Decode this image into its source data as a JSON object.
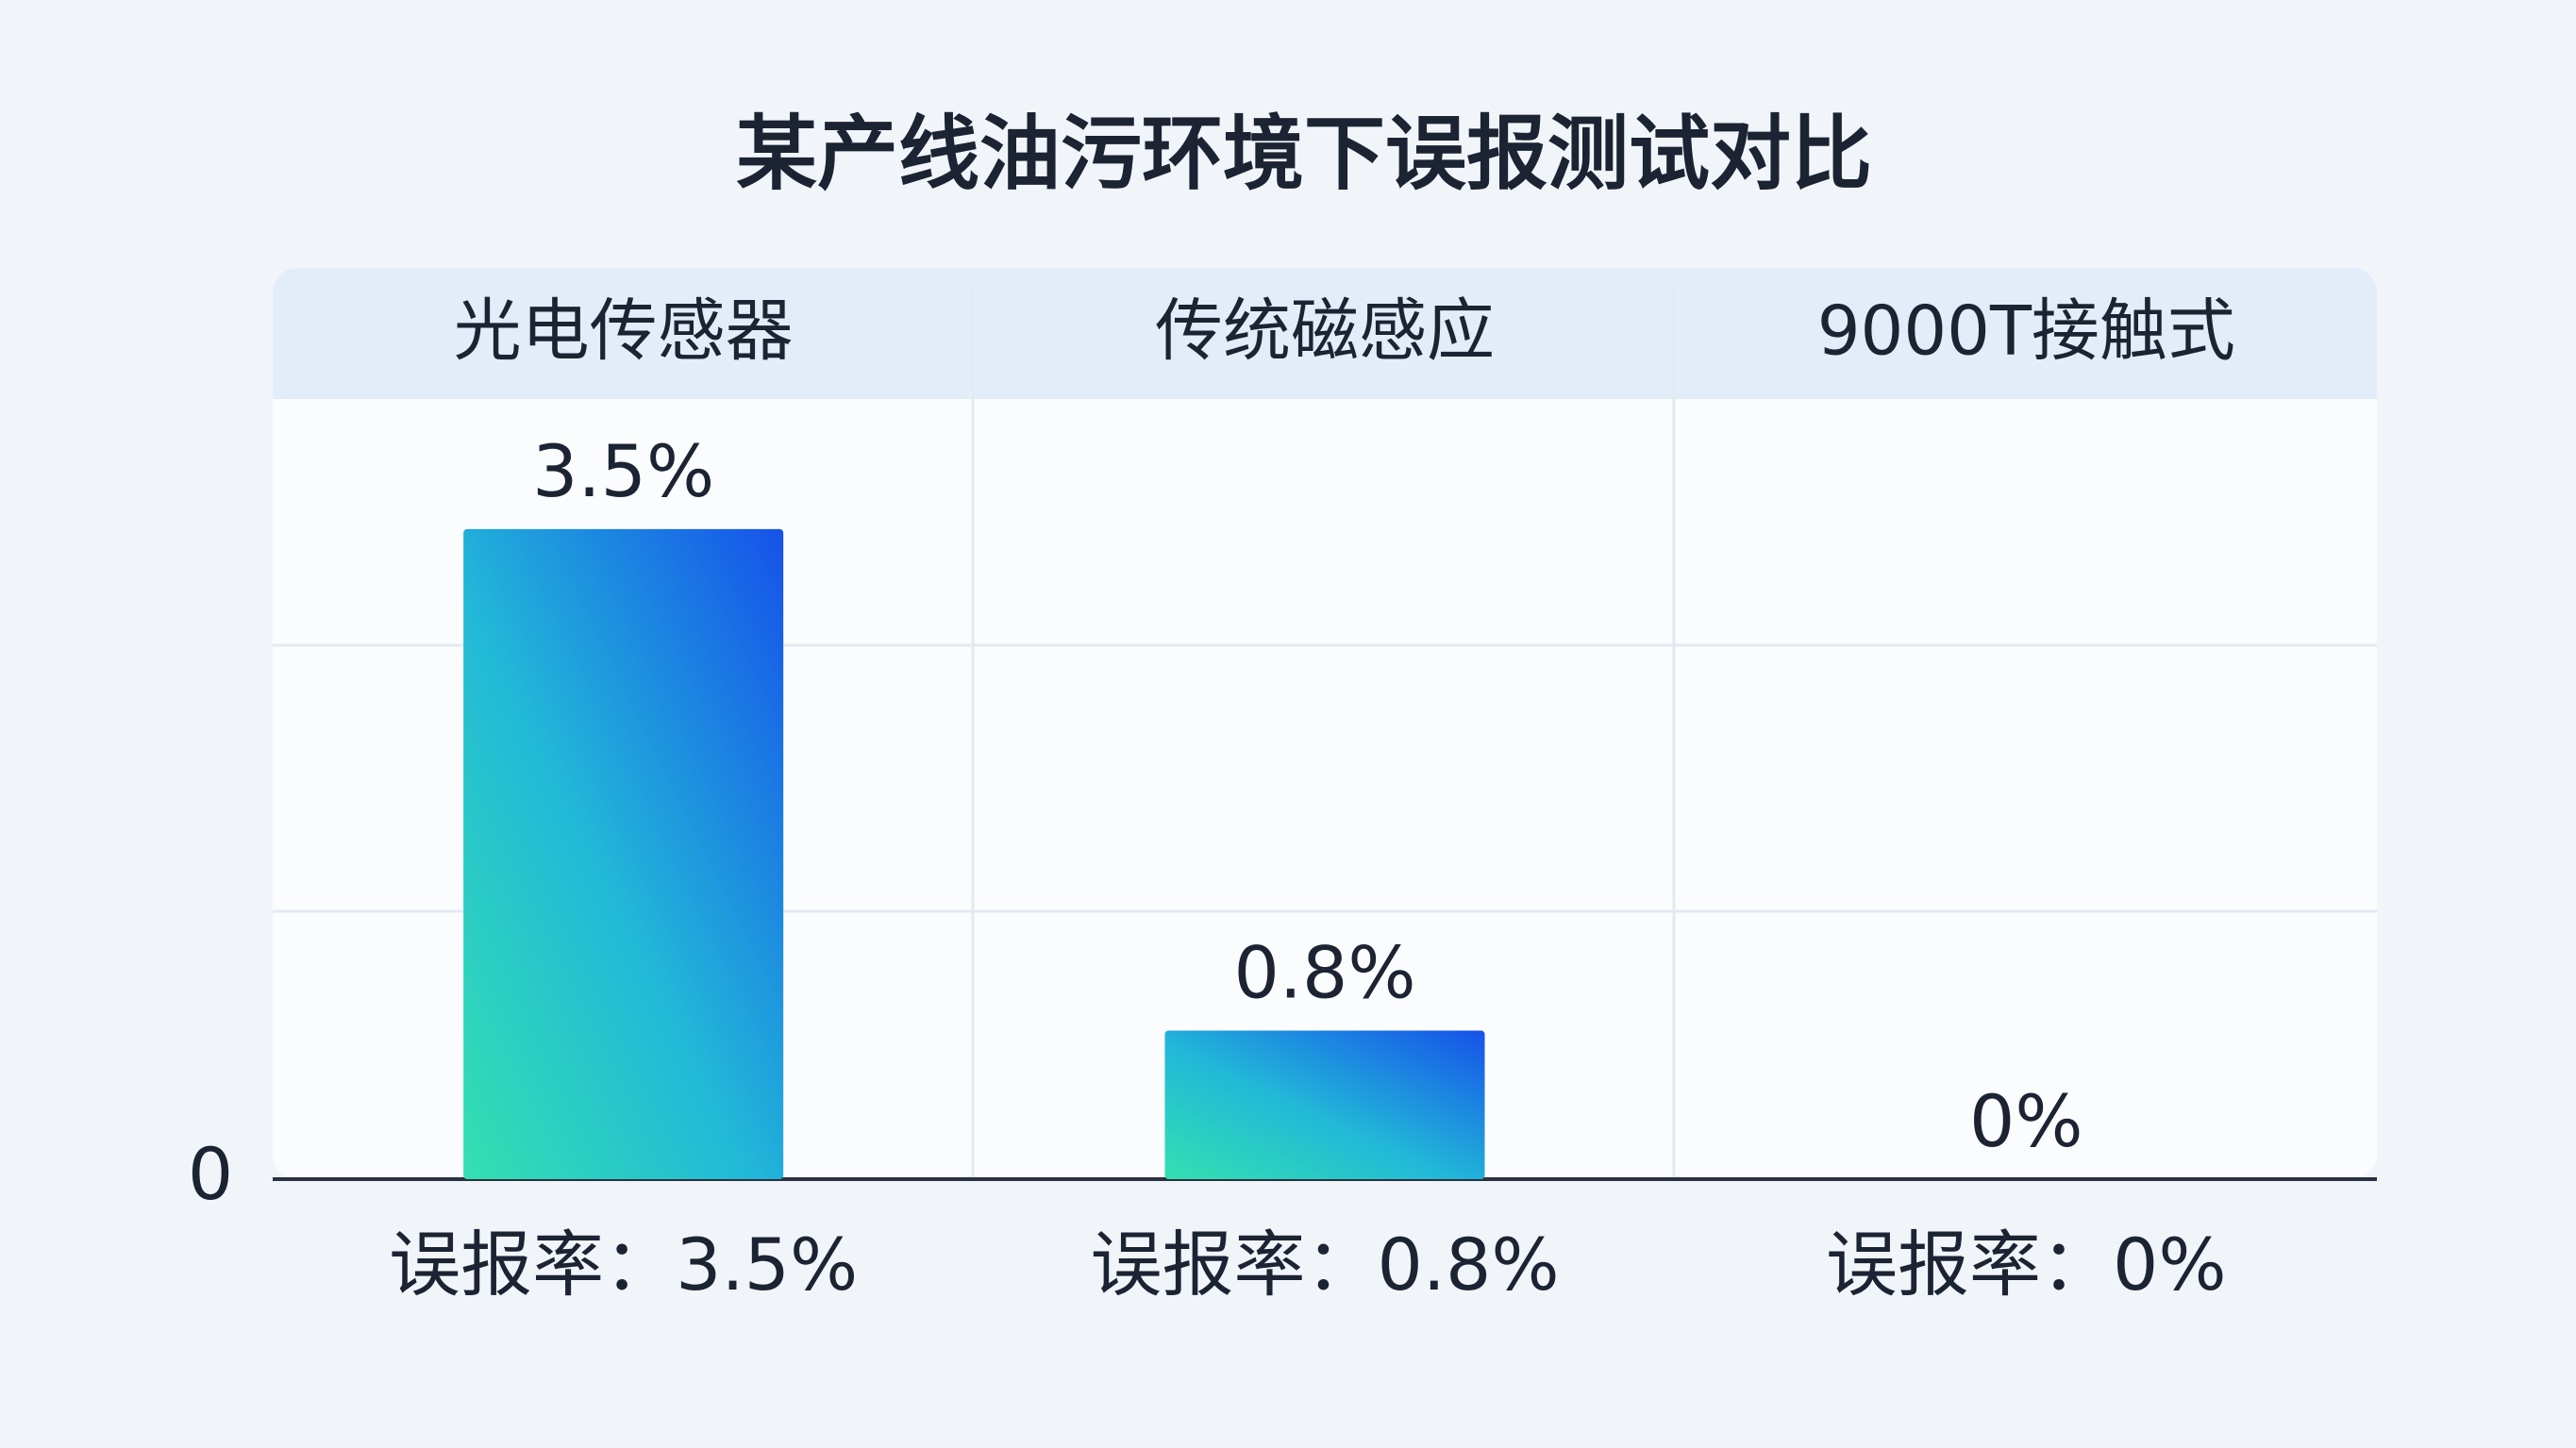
{
  "chart_data": {
    "type": "bar",
    "title": "某产线油污环境下误报测试对比",
    "categories": [
      "光电传感器",
      "传统磁感应",
      "9000T接触式"
    ],
    "values": [
      3.5,
      0.8,
      0
    ],
    "value_labels": [
      "3.5%",
      "0.8%",
      "0%"
    ],
    "bottom_labels": [
      "误报率：3.5%",
      "误报率：0.8%",
      "误报率：0%"
    ],
    "ylim": [
      0,
      4.2
    ],
    "yticks": [
      0
    ],
    "grid": true
  }
}
